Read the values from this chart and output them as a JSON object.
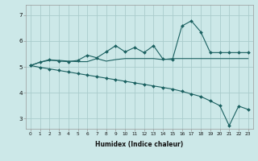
{
  "xlabel": "Humidex (Indice chaleur)",
  "bg_color": "#cce8e8",
  "grid_color": "#aacccc",
  "line_color": "#1a6060",
  "x_ticks": [
    0,
    1,
    2,
    3,
    4,
    5,
    6,
    7,
    8,
    9,
    10,
    11,
    12,
    13,
    14,
    15,
    16,
    17,
    18,
    19,
    20,
    21,
    22,
    23
  ],
  "y_ticks": [
    3,
    4,
    5,
    6,
    7
  ],
  "ylim": [
    2.6,
    7.4
  ],
  "xlim": [
    -0.5,
    23.5
  ],
  "series1_x": [
    0,
    1,
    2,
    3,
    4,
    5,
    6,
    7,
    8,
    9,
    10,
    11,
    12,
    13,
    14,
    15,
    16,
    17,
    18,
    19,
    20,
    21,
    22,
    23
  ],
  "series1_y": [
    5.05,
    5.18,
    5.28,
    5.22,
    5.2,
    5.25,
    5.45,
    5.35,
    5.58,
    5.82,
    5.58,
    5.75,
    5.55,
    5.82,
    5.3,
    5.28,
    6.58,
    6.78,
    6.35,
    5.55,
    5.55,
    5.55,
    5.55,
    5.55
  ],
  "series2_x": [
    0,
    1,
    2,
    3,
    4,
    5,
    6,
    7,
    8,
    9,
    10,
    11,
    12,
    13,
    14,
    15,
    16,
    17,
    18,
    19,
    20,
    21,
    22,
    23
  ],
  "series2_y": [
    5.05,
    5.18,
    5.25,
    5.25,
    5.22,
    5.2,
    5.2,
    5.32,
    5.22,
    5.28,
    5.32,
    5.32,
    5.32,
    5.32,
    5.28,
    5.32,
    5.32,
    5.32,
    5.32,
    5.32,
    5.32,
    5.32,
    5.32,
    5.32
  ],
  "series3_x": [
    0,
    1,
    2,
    3,
    4,
    5,
    6,
    7,
    8,
    9,
    10,
    11,
    12,
    13,
    14,
    15,
    16,
    17,
    18,
    19,
    20,
    21,
    22,
    23
  ],
  "series3_y": [
    5.05,
    4.98,
    4.92,
    4.86,
    4.8,
    4.74,
    4.68,
    4.62,
    4.56,
    4.5,
    4.44,
    4.38,
    4.32,
    4.26,
    4.2,
    4.14,
    4.05,
    3.95,
    3.85,
    3.68,
    3.5,
    2.72,
    3.48,
    3.35
  ],
  "xlabel_fontsize": 5.5,
  "tick_fontsize_x": 4.2,
  "tick_fontsize_y": 5.2
}
